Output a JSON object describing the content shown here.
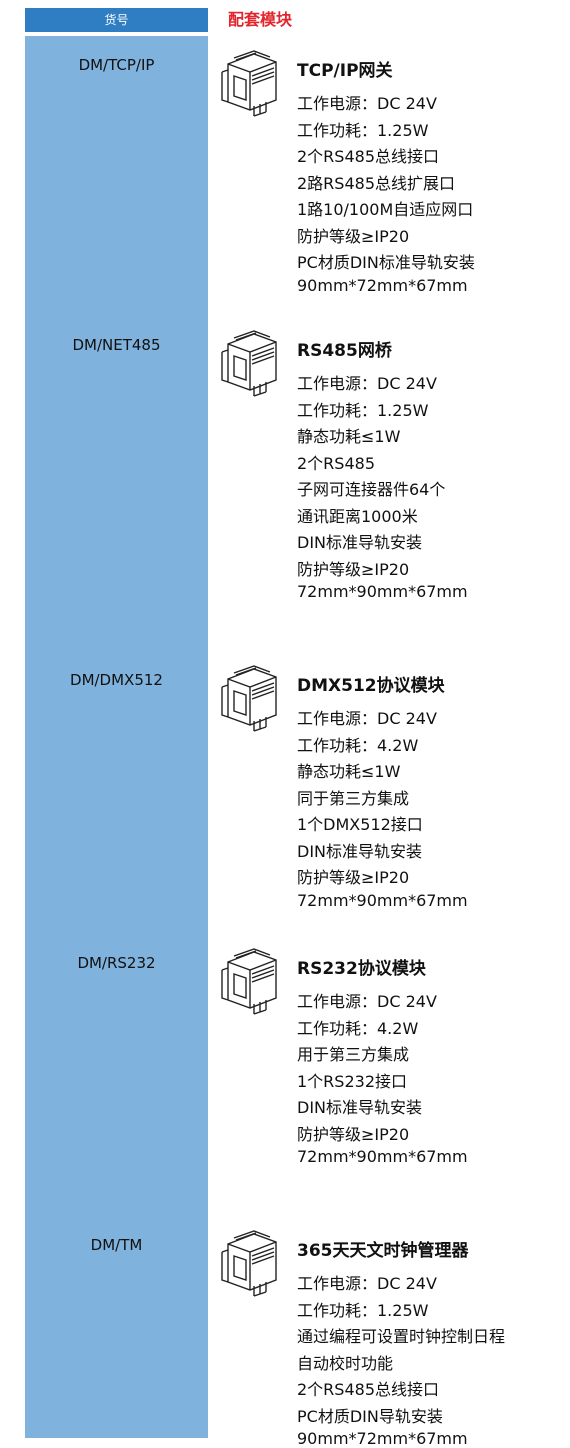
{
  "header": {
    "code_label": "货号",
    "module_label": "配套模块"
  },
  "items": [
    {
      "code": "DM/TCP/IP",
      "title": "TCP/IP网关",
      "specs": [
        "工作电源：DC 24V",
        "工作功耗：1.25W",
        "2个RS485总线接口",
        "2路RS485总线扩展口",
        "1路10/100M自适应网口",
        "防护等级≥IP20",
        "PC材质DIN标准导轨安装",
        "90mm*72mm*67mm"
      ]
    },
    {
      "code": "DM/NET485",
      "title": "RS485网桥",
      "specs": [
        "工作电源：DC 24V",
        "工作功耗：1.25W",
        "静态功耗≤1W",
        "2个RS485",
        "子网可连接器件64个",
        "通讯距离1000米",
        "DIN标准导轨安装",
        "防护等级≥IP20",
        "72mm*90mm*67mm"
      ]
    },
    {
      "code": "DM/DMX512",
      "title": "DMX512协议模块",
      "specs": [
        "工作电源：DC 24V",
        "工作功耗：4.2W",
        "静态功耗≤1W",
        "同于第三方集成",
        "1个DMX512接口",
        "DIN标准导轨安装",
        "防护等级≥IP20",
        "72mm*90mm*67mm"
      ]
    },
    {
      "code": "DM/RS232",
      "title": "RS232协议模块",
      "specs": [
        "工作电源：DC 24V",
        "工作功耗：4.2W",
        "用于第三方集成",
        "1个RS232接口",
        "DIN标准导轨安装",
        "防护等级≥IP20",
        "72mm*90mm*67mm"
      ]
    },
    {
      "code": "DM/TM",
      "title": "365天天文时钟管理器",
      "specs": [
        "工作电源：DC 24V",
        "工作功耗：1.25W",
        "通过编程可设置时钟控制日程",
        "自动校时功能",
        "2个RS485总线接口",
        "PC材质DIN导轨安装",
        "90mm*72mm*67mm"
      ]
    }
  ]
}
